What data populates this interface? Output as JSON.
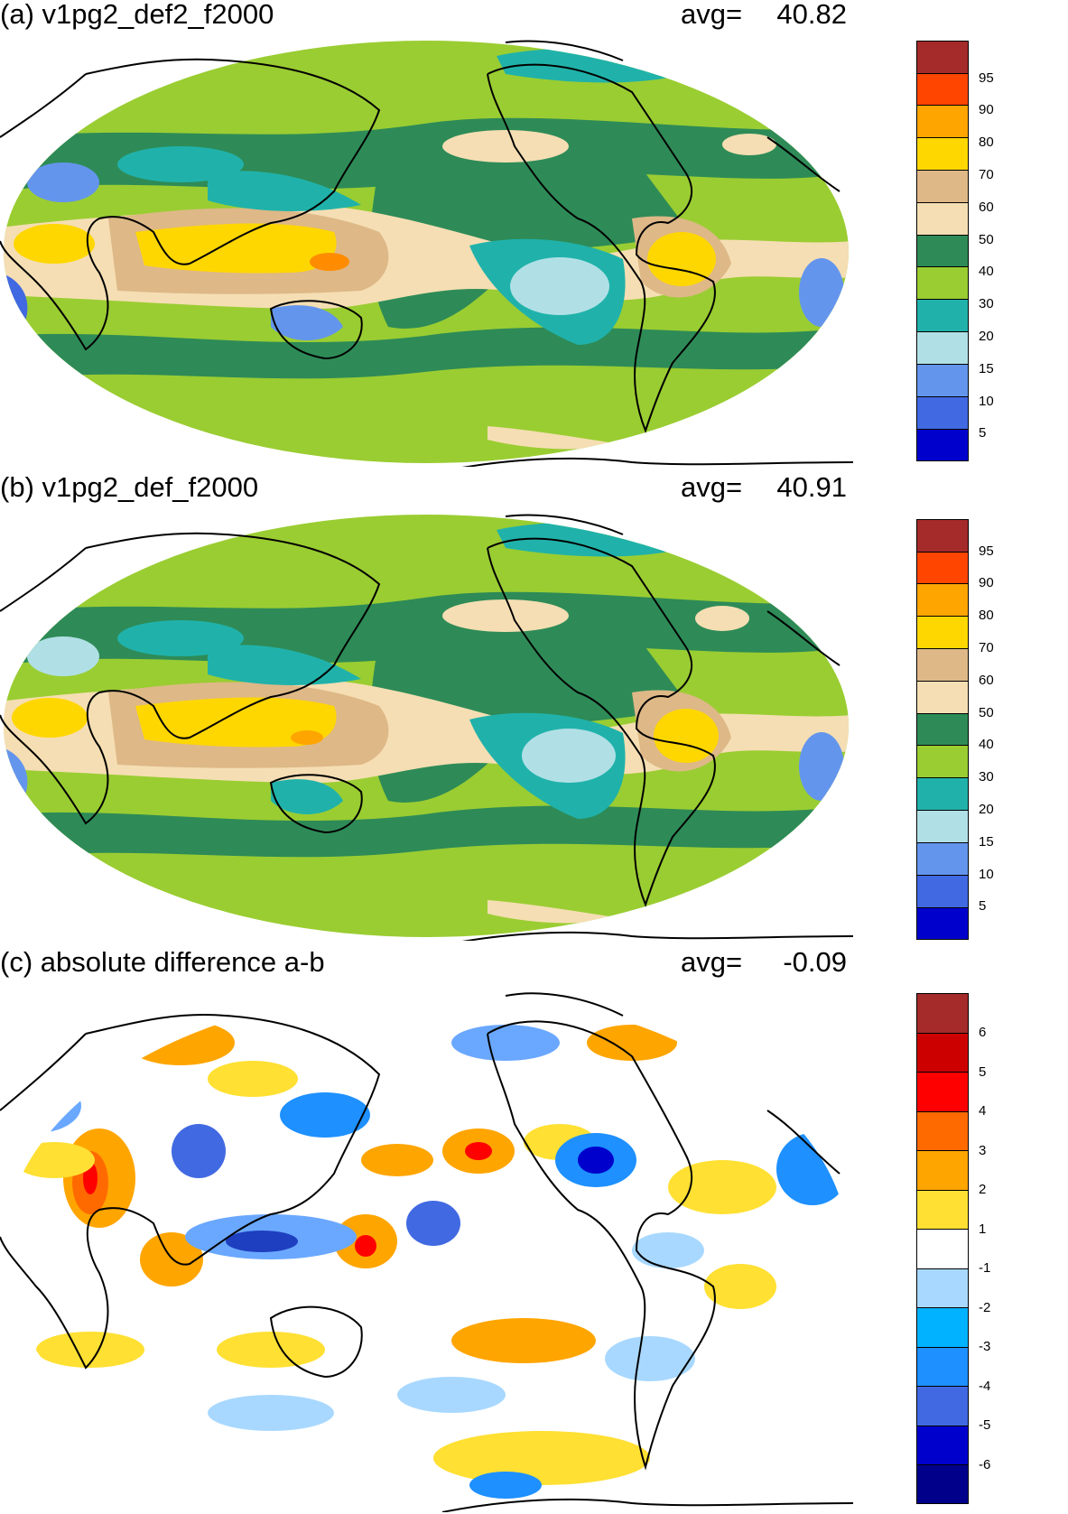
{
  "panels": [
    {
      "id": "a",
      "title": "(a) v1pg2_def2_f2000",
      "avg_label": "avg=",
      "avg_value": "40.82",
      "colorbar": {
        "labels": [
          "95",
          "90",
          "80",
          "70",
          "60",
          "50",
          "40",
          "30",
          "20",
          "15",
          "10",
          "5"
        ],
        "colors": [
          "#a52a2a",
          "#ff4500",
          "#ffa500",
          "#ffd700",
          "#deb887",
          "#f5deb3",
          "#2e8b57",
          "#9acd32",
          "#20b2aa",
          "#b0e0e6",
          "#6495ed",
          "#4169e1",
          "#0000cd"
        ]
      }
    },
    {
      "id": "b",
      "title": "(b) v1pg2_def_f2000",
      "avg_label": "avg=",
      "avg_value": "40.91",
      "colorbar": {
        "labels": [
          "95",
          "90",
          "80",
          "70",
          "60",
          "50",
          "40",
          "30",
          "20",
          "15",
          "10",
          "5"
        ],
        "colors": [
          "#a52a2a",
          "#ff4500",
          "#ffa500",
          "#ffd700",
          "#deb887",
          "#f5deb3",
          "#2e8b57",
          "#9acd32",
          "#20b2aa",
          "#b0e0e6",
          "#6495ed",
          "#4169e1",
          "#0000cd"
        ]
      }
    },
    {
      "id": "c",
      "title": "(c) absolute difference a-b",
      "avg_label": "avg=",
      "avg_value": "-0.09",
      "colorbar": {
        "labels": [
          "6",
          "5",
          "4",
          "3",
          "2",
          "1",
          "-1",
          "-2",
          "-3",
          "-4",
          "-5",
          "-6"
        ],
        "colors": [
          "#a52a2a",
          "#cd0000",
          "#ff0000",
          "#ff6a00",
          "#ffa500",
          "#ffe033",
          "#ffffff",
          "#a8d8ff",
          "#00b2ff",
          "#1e90ff",
          "#4169e1",
          "#0000cd",
          "#00008b"
        ]
      }
    }
  ]
}
